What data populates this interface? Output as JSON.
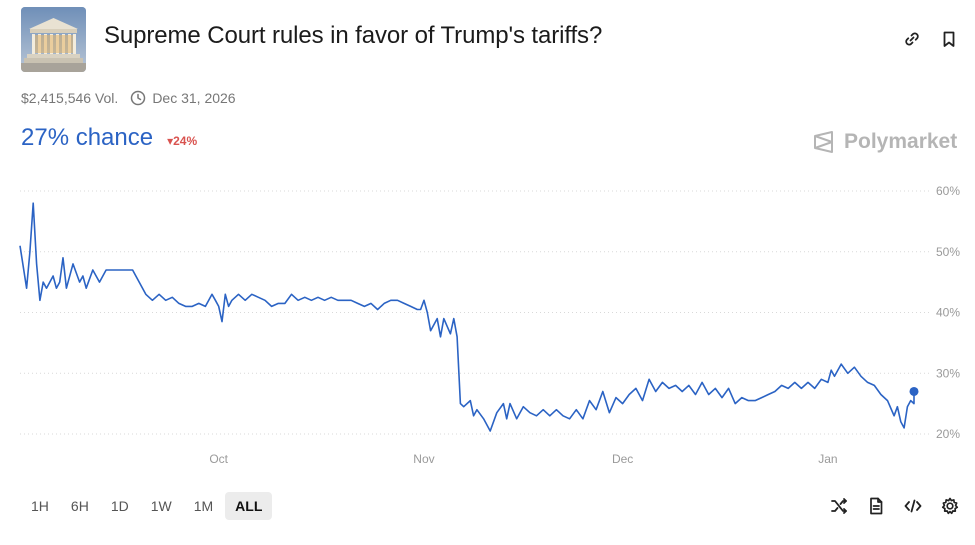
{
  "market": {
    "title": "Supreme Court rules in favor of Trump's tariffs?",
    "volume": "$2,415,546 Vol.",
    "end_date": "Dec 31, 2026",
    "chance": "27% chance",
    "change": "24%",
    "brand": "Polymarket"
  },
  "icons": {
    "link": "link-icon",
    "bookmark": "bookmark-icon",
    "clock": "clock-icon",
    "shuffle": "shuffle-icon",
    "document": "document-icon",
    "embed": "embed-code-icon",
    "settings": "gear-icon"
  },
  "colors": {
    "line": "#2b63c4",
    "chance": "#2b63c4",
    "down": "#d9534f"
  },
  "time_ranges": [
    {
      "label": "1H",
      "active": false
    },
    {
      "label": "6H",
      "active": false
    },
    {
      "label": "1D",
      "active": false
    },
    {
      "label": "1W",
      "active": false
    },
    {
      "label": "1M",
      "active": false
    },
    {
      "label": "ALL",
      "active": true
    }
  ],
  "chart_data": {
    "type": "line",
    "title": "",
    "xlabel": "",
    "ylabel": "",
    "ylim": [
      20,
      60
    ],
    "yticks": [
      60,
      50,
      40,
      30,
      20
    ],
    "ytick_labels": [
      "60%",
      "50%",
      "40%",
      "30%",
      "20%"
    ],
    "xlim": [
      "2025-09-01",
      "2026-01-14"
    ],
    "xticks": [
      "2025-10-01",
      "2025-11-01",
      "2025-12-01",
      "2026-01-01"
    ],
    "xtick_labels": [
      "Oct",
      "Nov",
      "Dec",
      "Jan"
    ],
    "grid": true,
    "series": [
      {
        "name": "",
        "points": [
          [
            "2025-09-01",
            51
          ],
          [
            "2025-09-02",
            44
          ],
          [
            "2025-09-02",
            50
          ],
          [
            "2025-09-03",
            58
          ],
          [
            "2025-09-03",
            48
          ],
          [
            "2025-09-04",
            42
          ],
          [
            "2025-09-04",
            45
          ],
          [
            "2025-09-05",
            44
          ],
          [
            "2025-09-06",
            46
          ],
          [
            "2025-09-06",
            44
          ],
          [
            "2025-09-07",
            45
          ],
          [
            "2025-09-07",
            49
          ],
          [
            "2025-09-08",
            44
          ],
          [
            "2025-09-09",
            48
          ],
          [
            "2025-09-10",
            45
          ],
          [
            "2025-09-10",
            46
          ],
          [
            "2025-09-11",
            44
          ],
          [
            "2025-09-12",
            47
          ],
          [
            "2025-09-13",
            45
          ],
          [
            "2025-09-14",
            47
          ],
          [
            "2025-09-16",
            47
          ],
          [
            "2025-09-18",
            47
          ],
          [
            "2025-09-19",
            45
          ],
          [
            "2025-09-20",
            43
          ],
          [
            "2025-09-21",
            42
          ],
          [
            "2025-09-22",
            43
          ],
          [
            "2025-09-23",
            42
          ],
          [
            "2025-09-24",
            42.5
          ],
          [
            "2025-09-25",
            41.5
          ],
          [
            "2025-09-26",
            41
          ],
          [
            "2025-09-27",
            41
          ],
          [
            "2025-09-28",
            41.5
          ],
          [
            "2025-09-29",
            41
          ],
          [
            "2025-09-30",
            43
          ],
          [
            "2025-09-30",
            42
          ],
          [
            "2025-10-01",
            41
          ],
          [
            "2025-10-01",
            38.5
          ],
          [
            "2025-10-02",
            43
          ],
          [
            "2025-10-02",
            41
          ],
          [
            "2025-10-03",
            42
          ],
          [
            "2025-10-04",
            43
          ],
          [
            "2025-10-05",
            42
          ],
          [
            "2025-10-06",
            43
          ],
          [
            "2025-10-07",
            42.5
          ],
          [
            "2025-10-08",
            42
          ],
          [
            "2025-10-09",
            41
          ],
          [
            "2025-10-10",
            41.5
          ],
          [
            "2025-10-11",
            41.5
          ],
          [
            "2025-10-12",
            43
          ],
          [
            "2025-10-13",
            42
          ],
          [
            "2025-10-14",
            42.5
          ],
          [
            "2025-10-15",
            42
          ],
          [
            "2025-10-16",
            42.5
          ],
          [
            "2025-10-17",
            42
          ],
          [
            "2025-10-18",
            42.5
          ],
          [
            "2025-10-19",
            42
          ],
          [
            "2025-10-20",
            42
          ],
          [
            "2025-10-21",
            42
          ],
          [
            "2025-10-22",
            41.5
          ],
          [
            "2025-10-23",
            41
          ],
          [
            "2025-10-24",
            41.5
          ],
          [
            "2025-10-25",
            40.5
          ],
          [
            "2025-10-26",
            41.5
          ],
          [
            "2025-10-27",
            42
          ],
          [
            "2025-10-28",
            42
          ],
          [
            "2025-10-29",
            41.5
          ],
          [
            "2025-10-30",
            41
          ],
          [
            "2025-10-31",
            40.5
          ],
          [
            "2025-10-31",
            40.5
          ],
          [
            "2025-11-01",
            42
          ],
          [
            "2025-11-01",
            40
          ],
          [
            "2025-11-02",
            37
          ],
          [
            "2025-11-03",
            39
          ],
          [
            "2025-11-03",
            36
          ],
          [
            "2025-11-04",
            39
          ],
          [
            "2025-11-05",
            36.5
          ],
          [
            "2025-11-05",
            39
          ],
          [
            "2025-11-06",
            36
          ],
          [
            "2025-11-06",
            25
          ],
          [
            "2025-11-07",
            24.5
          ],
          [
            "2025-11-08",
            25.5
          ],
          [
            "2025-11-08",
            23
          ],
          [
            "2025-11-09",
            24
          ],
          [
            "2025-11-10",
            22.5
          ],
          [
            "2025-11-11",
            20.5
          ],
          [
            "2025-11-12",
            23.5
          ],
          [
            "2025-11-13",
            25
          ],
          [
            "2025-11-13",
            22.5
          ],
          [
            "2025-11-14",
            25
          ],
          [
            "2025-11-15",
            22.5
          ],
          [
            "2025-11-16",
            24.5
          ],
          [
            "2025-11-17",
            23.5
          ],
          [
            "2025-11-18",
            23
          ],
          [
            "2025-11-19",
            24
          ],
          [
            "2025-11-20",
            23
          ],
          [
            "2025-11-21",
            24
          ],
          [
            "2025-11-22",
            23
          ],
          [
            "2025-11-23",
            22.5
          ],
          [
            "2025-11-24",
            24
          ],
          [
            "2025-11-25",
            22.5
          ],
          [
            "2025-11-26",
            25.5
          ],
          [
            "2025-11-27",
            24
          ],
          [
            "2025-11-28",
            27
          ],
          [
            "2025-11-29",
            23.5
          ],
          [
            "2025-11-30",
            26
          ],
          [
            "2025-12-01",
            25
          ],
          [
            "2025-12-02",
            26.5
          ],
          [
            "2025-12-03",
            27.5
          ],
          [
            "2025-12-04",
            25.5
          ],
          [
            "2025-12-05",
            29
          ],
          [
            "2025-12-06",
            27
          ],
          [
            "2025-12-07",
            28.5
          ],
          [
            "2025-12-08",
            27.5
          ],
          [
            "2025-12-09",
            28
          ],
          [
            "2025-12-10",
            27
          ],
          [
            "2025-12-11",
            28
          ],
          [
            "2025-12-12",
            26.5
          ],
          [
            "2025-12-13",
            28.5
          ],
          [
            "2025-12-14",
            26.5
          ],
          [
            "2025-12-15",
            27.5
          ],
          [
            "2025-12-16",
            26
          ],
          [
            "2025-12-17",
            27.5
          ],
          [
            "2025-12-18",
            25
          ],
          [
            "2025-12-19",
            26
          ],
          [
            "2025-12-20",
            25.5
          ],
          [
            "2025-12-21",
            25.5
          ],
          [
            "2025-12-22",
            26
          ],
          [
            "2025-12-23",
            26.5
          ],
          [
            "2025-12-24",
            27
          ],
          [
            "2025-12-25",
            28
          ],
          [
            "2025-12-26",
            27.5
          ],
          [
            "2025-12-27",
            28.5
          ],
          [
            "2025-12-28",
            27.5
          ],
          [
            "2025-12-29",
            28.5
          ],
          [
            "2025-12-30",
            27.5
          ],
          [
            "2025-12-31",
            29
          ],
          [
            "2026-01-01",
            28.5
          ],
          [
            "2026-01-01",
            30.5
          ],
          [
            "2026-01-02",
            29.5
          ],
          [
            "2026-01-03",
            31.5
          ],
          [
            "2026-01-04",
            30
          ],
          [
            "2026-01-05",
            31
          ],
          [
            "2026-01-06",
            29.5
          ],
          [
            "2026-01-07",
            28.5
          ],
          [
            "2026-01-08",
            28
          ],
          [
            "2026-01-09",
            26.5
          ],
          [
            "2026-01-10",
            25.5
          ],
          [
            "2026-01-11",
            23
          ],
          [
            "2026-01-11",
            24.5
          ],
          [
            "2026-01-12",
            22
          ],
          [
            "2026-01-12",
            21
          ],
          [
            "2026-01-13",
            24.5
          ],
          [
            "2026-01-13",
            25.5
          ],
          [
            "2026-01-14",
            25
          ],
          [
            "2026-01-14",
            26.5
          ],
          [
            "2026-01-14",
            27
          ]
        ]
      }
    ]
  }
}
